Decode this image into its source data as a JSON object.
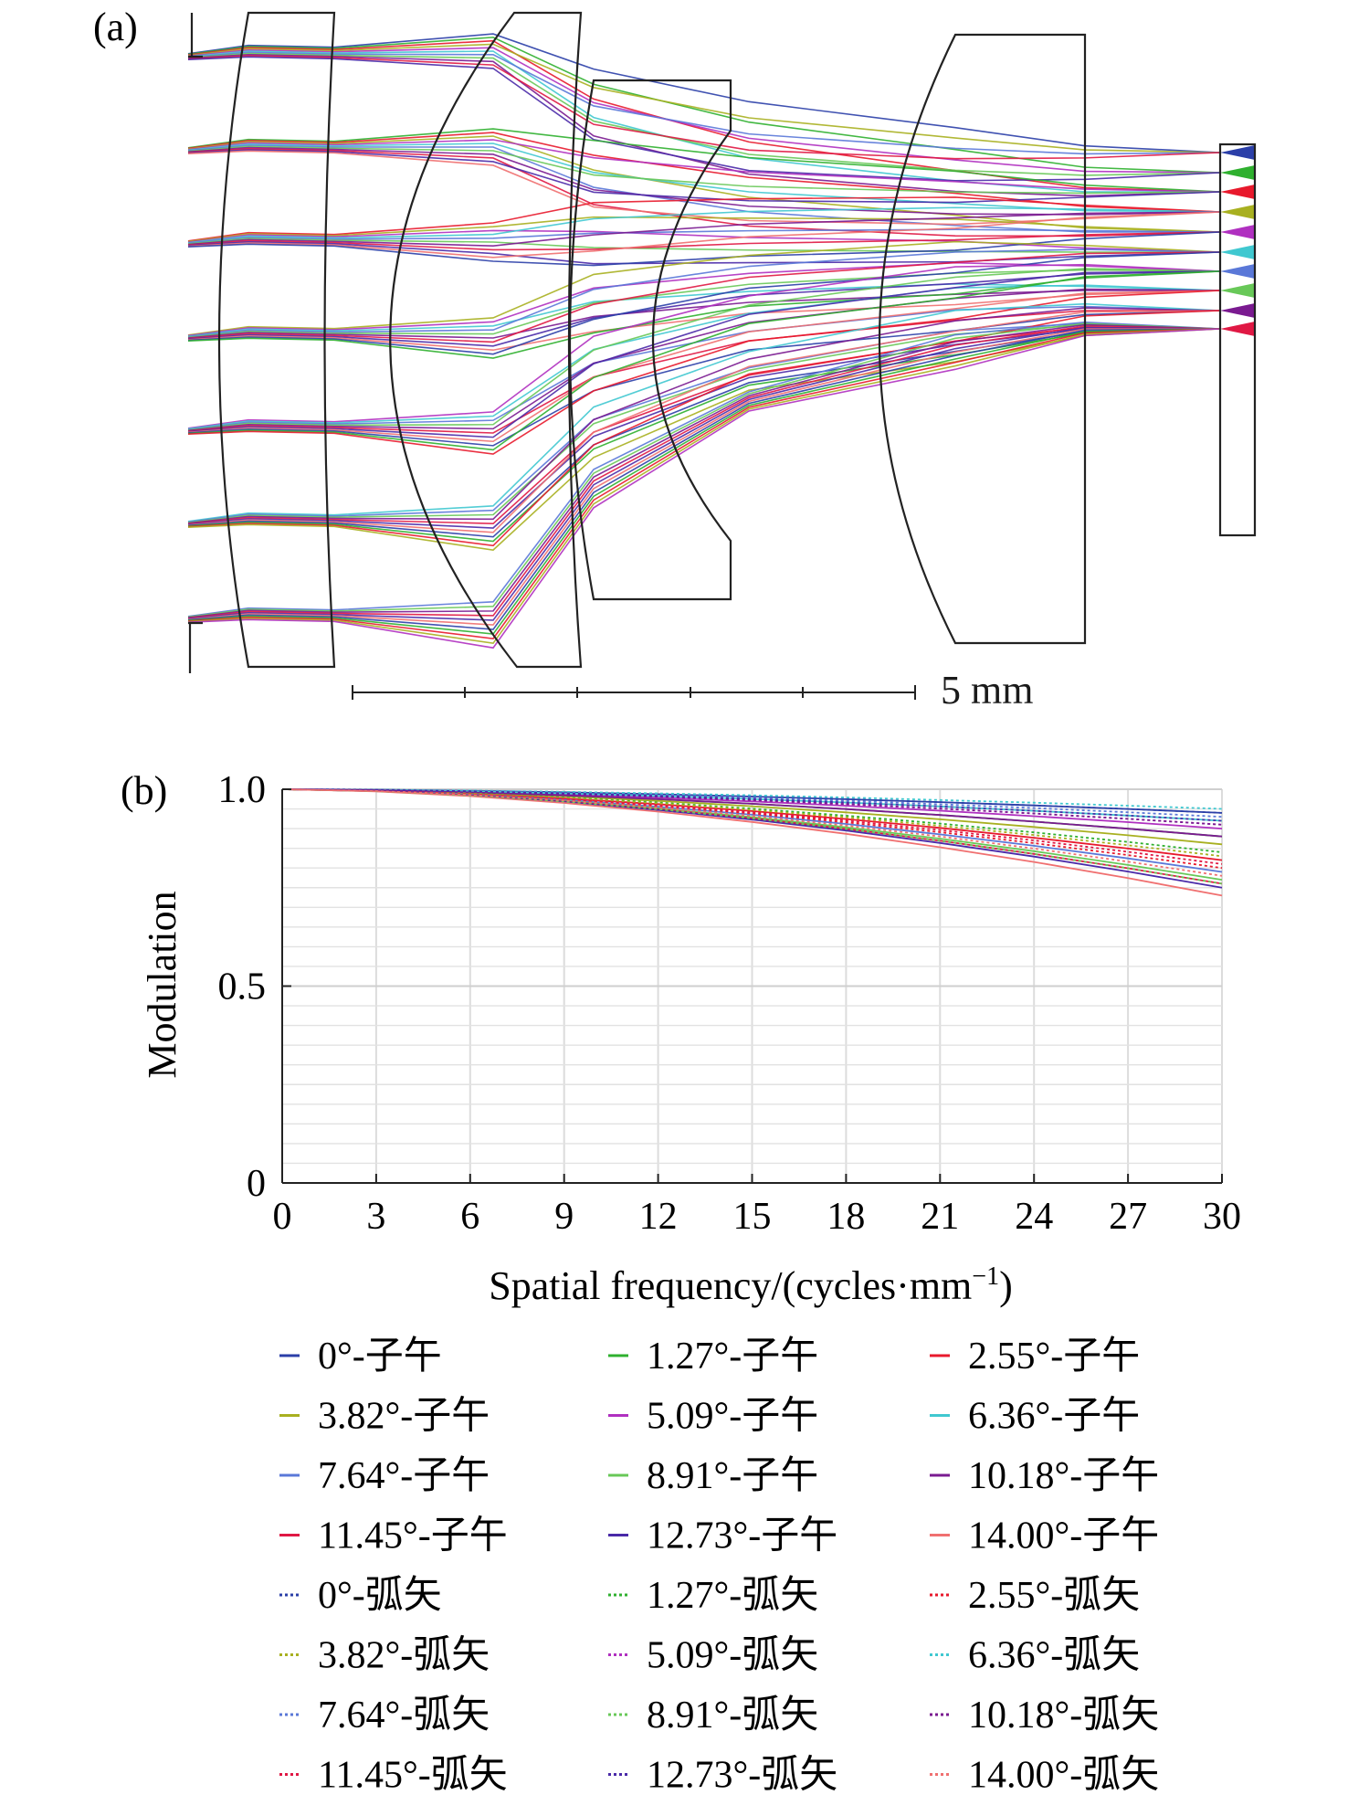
{
  "panel_a": {
    "label": "(a)",
    "scale_bar_label": "5 mm",
    "field_colors": [
      "#2b3fa8",
      "#2fb02f",
      "#e8192c",
      "#a8b020",
      "#b030c0",
      "#40c8d0",
      "#5a78d8",
      "#68c858",
      "#7a1a90",
      "#e01844",
      "#4a2aa8",
      "#f07070"
    ]
  },
  "panel_b": {
    "label": "(b)"
  },
  "chart_data": {
    "type": "line",
    "title": "",
    "xlabel": "Spatial frequency/(cycles·mm",
    "xlabel_sup": "−1",
    "xlabel_tail": ")",
    "ylabel": "Modulation",
    "xlim": [
      0,
      30
    ],
    "ylim": [
      0,
      1.0
    ],
    "x_ticks": [
      "0",
      "3",
      "6",
      "9",
      "12",
      "15",
      "18",
      "21",
      "24",
      "27",
      "30"
    ],
    "y_ticks": [
      "0",
      "0.5",
      "1.0"
    ],
    "grid": true,
    "legend_position": "bottom",
    "x": [
      0,
      3,
      6,
      9,
      12,
      15,
      18,
      21,
      24,
      27,
      30
    ],
    "series": [
      {
        "name": "0°-子午",
        "color": "#2b3fa8",
        "dash": false,
        "end": 0.94
      },
      {
        "name": "1.27°-子午",
        "color": "#2fb02f",
        "dash": false,
        "end": 0.88
      },
      {
        "name": "2.55°-子午",
        "color": "#e8192c",
        "dash": false,
        "end": 0.82
      },
      {
        "name": "3.82°-子午",
        "color": "#a8b020",
        "dash": false,
        "end": 0.86
      },
      {
        "name": "5.09°-子午",
        "color": "#b030c0",
        "dash": false,
        "end": 0.9
      },
      {
        "name": "6.36°-子午",
        "color": "#40c8d0",
        "dash": false,
        "end": 0.92
      },
      {
        "name": "7.64°-子午",
        "color": "#5a78d8",
        "dash": false,
        "end": 0.79
      },
      {
        "name": "8.91°-子午",
        "color": "#68c858",
        "dash": false,
        "end": 0.77
      },
      {
        "name": "10.18°-子午",
        "color": "#7a1a90",
        "dash": false,
        "end": 0.88
      },
      {
        "name": "11.45°-子午",
        "color": "#e01844",
        "dash": false,
        "end": 0.76
      },
      {
        "name": "12.73°-子午",
        "color": "#4a2aa8",
        "dash": false,
        "end": 0.75
      },
      {
        "name": "14.00°-子午",
        "color": "#f07070",
        "dash": false,
        "end": 0.73
      },
      {
        "name": "0°-弧矢",
        "color": "#2b3fa8",
        "dash": true,
        "end": 0.94
      },
      {
        "name": "1.27°-弧矢",
        "color": "#2fb02f",
        "dash": true,
        "end": 0.84
      },
      {
        "name": "2.55°-弧矢",
        "color": "#e8192c",
        "dash": true,
        "end": 0.8
      },
      {
        "name": "3.82°-弧矢",
        "color": "#a8b020",
        "dash": true,
        "end": 0.83
      },
      {
        "name": "5.09°-弧矢",
        "color": "#b030c0",
        "dash": true,
        "end": 0.91
      },
      {
        "name": "6.36°-弧矢",
        "color": "#40c8d0",
        "dash": true,
        "end": 0.95
      },
      {
        "name": "7.64°-弧矢",
        "color": "#5a78d8",
        "dash": true,
        "end": 0.93
      },
      {
        "name": "8.91°-弧矢",
        "color": "#68c858",
        "dash": true,
        "end": 0.76
      },
      {
        "name": "10.18°-弧矢",
        "color": "#7a1a90",
        "dash": true,
        "end": 0.91
      },
      {
        "name": "11.45°-弧矢",
        "color": "#e01844",
        "dash": true,
        "end": 0.81
      },
      {
        "name": "12.73°-弧矢",
        "color": "#4a2aa8",
        "dash": true,
        "end": 0.92
      },
      {
        "name": "14.00°-弧矢",
        "color": "#f07070",
        "dash": true,
        "end": 0.78
      }
    ]
  }
}
